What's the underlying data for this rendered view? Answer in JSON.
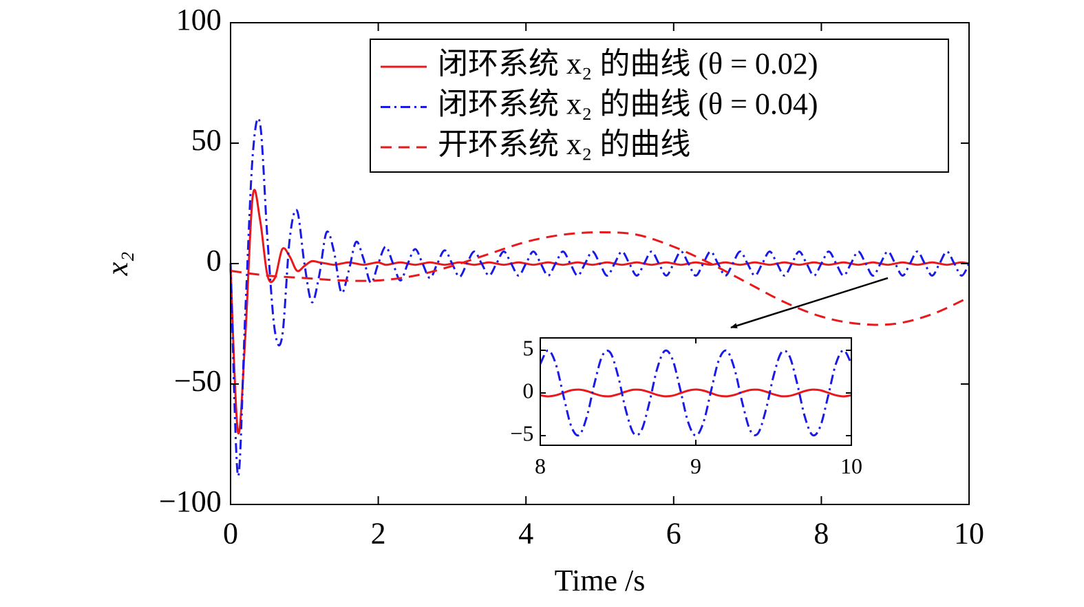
{
  "chart_data": [
    {
      "type": "line",
      "xlabel": "Time /s",
      "ylabel": "x₂",
      "x": [
        0,
        0.1,
        0.2,
        0.3,
        0.4,
        0.5,
        0.6,
        0.7,
        0.8,
        0.9,
        1.0,
        1.1,
        1.2,
        1.3,
        1.4,
        1.5,
        1.6,
        1.7,
        1.8,
        1.9,
        2.0,
        2.1,
        2.2,
        2.3,
        2.4,
        2.5,
        2.6,
        2.7,
        2.8,
        2.9,
        3.0,
        3.1,
        3.2,
        3.3,
        3.4,
        3.5,
        3.6,
        3.7,
        3.8,
        3.9,
        4.0,
        4.1,
        4.2,
        4.3,
        4.4,
        4.5,
        4.6,
        4.7,
        4.8,
        4.9,
        5.0,
        5.1,
        5.2,
        5.3,
        5.4,
        5.5,
        5.6,
        5.7,
        5.8,
        5.9,
        6.0,
        6.1,
        6.2,
        6.3,
        6.4,
        6.5,
        6.6,
        6.7,
        6.8,
        6.9,
        7.0,
        7.1,
        7.2,
        7.3,
        7.4,
        7.5,
        7.6,
        7.7,
        7.8,
        7.9,
        8.0,
        8.1,
        8.2,
        8.3,
        8.4,
        8.5,
        8.6,
        8.7,
        8.8,
        8.9,
        9.0,
        9.1,
        9.2,
        9.3,
        9.4,
        9.5,
        9.6,
        9.7,
        9.8,
        9.9,
        10.0
      ],
      "series": [
        {
          "name": "闭环系统 x₂ 的曲线 (θ = 0.02)",
          "color": "#e8191c",
          "linestyle": "solid",
          "values": [
            -2,
            -70,
            -30,
            28,
            18,
            -5,
            -6,
            6,
            3,
            -3,
            -1,
            1,
            0.5,
            0,
            -0.5,
            0,
            0.5,
            0,
            -0.5,
            0,
            0.5,
            -0.5,
            0,
            0.5,
            0,
            -0.5,
            0,
            0.5,
            0,
            -0.5,
            0,
            0.5,
            0,
            -0.5,
            0,
            0.5,
            0,
            -0.5,
            0,
            0.5,
            0,
            -0.5,
            0,
            0.5,
            0,
            -0.5,
            0,
            0.5,
            0,
            -0.5,
            0,
            0.5,
            0,
            -0.5,
            0,
            0.5,
            0,
            -0.5,
            0,
            0.5,
            0,
            -0.5,
            0,
            0.5,
            0,
            -0.5,
            0,
            0.5,
            0,
            -0.5,
            0,
            0.5,
            0,
            -0.5,
            0,
            0.5,
            0,
            -0.5,
            0,
            0.5,
            0,
            -0.5,
            0,
            0.5,
            0,
            -0.5,
            0,
            0.5,
            0,
            -0.5,
            0,
            0.5,
            0,
            -0.5,
            0,
            0.5,
            0,
            -0.5,
            0,
            0.5,
            0
          ]
        },
        {
          "name": "闭环系统 x₂ 的曲线 (θ = 0.04)",
          "color": "#1a1ae6",
          "linestyle": "dashdot",
          "values": [
            0,
            -88,
            -20,
            45,
            58,
            10,
            -28,
            -30,
            10,
            22,
            0,
            -16,
            -5,
            13,
            5,
            -12,
            -3,
            9,
            2,
            -8,
            0,
            7,
            0,
            -7,
            0,
            6,
            0,
            -6,
            0,
            5.5,
            0,
            -5.5,
            0,
            5,
            0,
            -5,
            0,
            5,
            0,
            -5,
            0,
            5,
            0,
            -5,
            0,
            5,
            0,
            -5,
            0,
            5,
            0,
            -5,
            0,
            5,
            0,
            -5,
            0,
            5,
            0,
            -5,
            0,
            5,
            0,
            -5,
            0,
            5,
            0,
            -5,
            0,
            5,
            0,
            -5,
            0,
            5,
            0,
            -5,
            0,
            5,
            0,
            -5,
            0,
            5,
            0,
            -5,
            0,
            5,
            0,
            -5,
            0,
            5,
            0,
            -5,
            0,
            5,
            0,
            -5,
            0,
            5,
            0,
            -5,
            0
          ]
        },
        {
          "name": "开环系统 x₂ 的曲线",
          "color": "#e8191c",
          "linestyle": "dashed",
          "x": [
            0,
            0.5,
            1,
            1.5,
            2,
            2.5,
            3,
            3.5,
            4,
            4.5,
            5,
            5.5,
            6,
            6.5,
            7,
            7.5,
            8,
            8.5,
            9,
            9.5,
            10
          ],
          "values": [
            -3,
            -5,
            -6,
            -7,
            -7,
            -5,
            -1,
            4,
            9,
            12,
            13,
            12,
            7,
            0,
            -8,
            -16,
            -22,
            -25,
            -25,
            -21,
            -14
          ]
        }
      ],
      "xlim": [
        0,
        10
      ],
      "xticks": [
        0,
        2,
        4,
        6,
        8,
        10
      ],
      "ylim": [
        -100,
        100
      ],
      "yticks": [
        {
          "value": -100,
          "label": "−100"
        },
        {
          "value": -50,
          "label": "−50"
        },
        0,
        50,
        100
      ],
      "legend": "upper right"
    },
    {
      "type": "line",
      "x": [
        8,
        8.05,
        8.1,
        8.15,
        8.2,
        8.25,
        8.3,
        8.35,
        8.4,
        8.45,
        8.5,
        8.55,
        8.6,
        8.65,
        8.7,
        8.75,
        8.8,
        8.85,
        8.9,
        8.95,
        9,
        9.05,
        9.1,
        9.15,
        9.2,
        9.25,
        9.3,
        9.35,
        9.4,
        9.45,
        9.5,
        9.55,
        9.6,
        9.65,
        9.7,
        9.75,
        9.8,
        9.85,
        9.9,
        9.95,
        10
      ],
      "series": [
        {
          "color": "#e8191c",
          "linestyle": "solid",
          "values": [
            -0.27,
            -0.4,
            -0.27,
            0.03,
            0.32,
            0.39,
            0.22,
            -0.1,
            -0.35,
            -0.38,
            -0.16,
            0.16,
            0.38,
            0.35,
            0.1,
            -0.22,
            -0.39,
            -0.32,
            -0.03,
            0.27,
            0.4,
            0.27,
            -0.03,
            -0.32,
            -0.39,
            -0.22,
            0.1,
            0.35,
            0.38,
            0.16,
            -0.16,
            -0.38,
            -0.35,
            -0.1,
            0.22,
            0.39,
            0.32,
            0.03,
            -0.27,
            -0.4,
            -0.27
          ]
        },
        {
          "color": "#1a1ae6",
          "linestyle": "dashdot",
          "values": [
            3.39,
            5,
            3.39,
            -0.41,
            -3.95,
            -4.93,
            -2.74,
            1.23,
            4.4,
            4.73,
            2.01,
            -2.01,
            -4.73,
            -4.4,
            -1.23,
            2.74,
            4.93,
            3.94,
            0.41,
            -3.39,
            -5,
            -3.39,
            0.41,
            3.95,
            4.93,
            2.74,
            -1.23,
            -4.4,
            -4.73,
            -2.01,
            2.01,
            4.73,
            4.4,
            1.23,
            -2.74,
            -4.93,
            -3.94,
            -0.41,
            3.39,
            5,
            3.39
          ]
        }
      ],
      "xlim": [
        8,
        10
      ],
      "xticks": [
        8,
        9,
        10
      ],
      "ylim": [
        -6.13,
        6.45
      ],
      "yticks": [
        {
          "value": -5,
          "label": "−5"
        },
        0,
        5
      ]
    }
  ]
}
